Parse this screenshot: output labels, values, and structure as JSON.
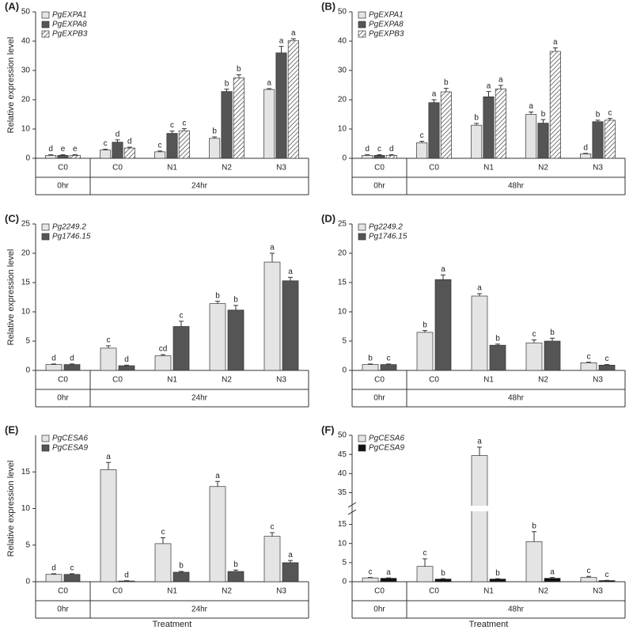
{
  "chart_data": [
    {
      "type": "bar",
      "panel": "(A)",
      "y_label": "Relative expression level",
      "categories": [
        "C0",
        "C0",
        "N1",
        "N2",
        "N3"
      ],
      "groups": [
        {
          "label": "0hr",
          "span": 1
        },
        {
          "label": "24hr",
          "span": 4
        }
      ],
      "ylim": [
        0,
        50
      ],
      "yticks": [
        0,
        10,
        20,
        30,
        40,
        50
      ],
      "series": [
        {
          "name": "PgEXPA1",
          "color": "#e4e4e4",
          "values": [
            1,
            2.8,
            2.2,
            6.8,
            23.5
          ],
          "errors": [
            0.2,
            0.3,
            0.3,
            0.5,
            0.3
          ],
          "letters": [
            "d",
            "c",
            "c",
            "b",
            "a"
          ]
        },
        {
          "name": "PgEXPA8",
          "color": "#555555",
          "values": [
            1,
            5.5,
            8.5,
            22.8,
            36
          ],
          "errors": [
            0.2,
            0.8,
            0.8,
            0.8,
            2.2
          ],
          "letters": [
            "e",
            "d",
            "c",
            "b",
            "a"
          ]
        },
        {
          "name": "PgEXPB3",
          "color": "#ffffff",
          "pattern": "hatch",
          "values": [
            1,
            3.5,
            9.4,
            27.5,
            40.2
          ],
          "errors": [
            0.2,
            0.3,
            0.7,
            1.0,
            0.6
          ],
          "letters": [
            "e",
            "d",
            "c",
            "b",
            "a"
          ]
        }
      ]
    },
    {
      "type": "bar",
      "panel": "(B)",
      "categories": [
        "C0",
        "C0",
        "N1",
        "N2",
        "N3"
      ],
      "groups": [
        {
          "label": "0hr",
          "span": 1
        },
        {
          "label": "48hr",
          "span": 4
        }
      ],
      "ylim": [
        0,
        50
      ],
      "yticks": [
        0,
        10,
        20,
        30,
        40,
        50
      ],
      "series": [
        {
          "name": "PgEXPA1",
          "color": "#e4e4e4",
          "values": [
            1,
            5.3,
            11.3,
            15,
            1.5
          ],
          "errors": [
            0.2,
            0.5,
            0.6,
            0.8,
            0.2
          ],
          "letters": [
            "d",
            "c",
            "b",
            "a",
            "d"
          ]
        },
        {
          "name": "PgEXPA8",
          "color": "#555555",
          "values": [
            1,
            19,
            21,
            12,
            12.5
          ],
          "errors": [
            0.2,
            1.0,
            1.8,
            1.2,
            0.5
          ],
          "letters": [
            "c",
            "a",
            "a",
            "b",
            "b"
          ]
        },
        {
          "name": "PgEXPB3",
          "color": "#ffffff",
          "pattern": "hatch",
          "values": [
            1,
            22.7,
            23.7,
            36.5,
            13
          ],
          "errors": [
            0.2,
            1.2,
            1.2,
            1.2,
            0.6
          ],
          "letters": [
            "d",
            "b",
            "a",
            "a",
            "c"
          ]
        }
      ]
    },
    {
      "type": "bar",
      "panel": "(C)",
      "y_label": "Relative expression level",
      "categories": [
        "C0",
        "C0",
        "N1",
        "N2",
        "N3"
      ],
      "groups": [
        {
          "label": "0hr",
          "span": 1
        },
        {
          "label": "24hr",
          "span": 4
        }
      ],
      "ylim": [
        0,
        25
      ],
      "yticks": [
        0,
        5,
        10,
        15,
        20,
        25
      ],
      "series": [
        {
          "name": "Pg2249.2",
          "color": "#e4e4e4",
          "values": [
            1,
            3.8,
            2.5,
            11.4,
            18.5
          ],
          "errors": [
            0.1,
            0.4,
            0.2,
            0.4,
            1.5
          ],
          "letters": [
            "d",
            "c",
            "cd",
            "b",
            "a"
          ]
        },
        {
          "name": "Pg1746.15",
          "color": "#555555",
          "values": [
            1,
            0.8,
            7.5,
            10.3,
            15.3
          ],
          "errors": [
            0.1,
            0.1,
            0.9,
            0.8,
            0.6
          ],
          "letters": [
            "d",
            "d",
            "c",
            "b",
            "a"
          ]
        }
      ]
    },
    {
      "type": "bar",
      "panel": "(D)",
      "categories": [
        "C0",
        "C0",
        "N1",
        "N2",
        "N3"
      ],
      "groups": [
        {
          "label": "0hr",
          "span": 1
        },
        {
          "label": "48hr",
          "span": 4
        }
      ],
      "ylim": [
        0,
        25
      ],
      "yticks": [
        0,
        5,
        10,
        15,
        20,
        25
      ],
      "series": [
        {
          "name": "Pg2249.2",
          "color": "#e4e4e4",
          "values": [
            1,
            6.5,
            12.7,
            4.7,
            1.3
          ],
          "errors": [
            0.1,
            0.3,
            0.4,
            0.5,
            0.1
          ],
          "letters": [
            "b",
            "b",
            "a",
            "c",
            "c"
          ]
        },
        {
          "name": "Pg1746.15",
          "color": "#555555",
          "values": [
            1,
            15.5,
            4.3,
            5,
            0.9
          ],
          "errors": [
            0.1,
            0.8,
            0.2,
            0.5,
            0.1
          ],
          "letters": [
            "c",
            "a",
            "b",
            "b",
            "c"
          ]
        }
      ]
    },
    {
      "type": "bar",
      "panel": "(E)",
      "y_label": "Relative expression level",
      "x_label": "Treatment",
      "categories": [
        "C0",
        "C0",
        "N1",
        "N2",
        "N3"
      ],
      "groups": [
        {
          "label": "0hr",
          "span": 1
        },
        {
          "label": "24hr",
          "span": 4
        }
      ],
      "ylim": [
        0,
        20
      ],
      "yticks": [
        0,
        5,
        10,
        15
      ],
      "series": [
        {
          "name": "PgCESA6",
          "color": "#e4e4e4",
          "values": [
            1,
            15.3,
            5.2,
            13,
            6.2
          ],
          "errors": [
            0.1,
            1.0,
            0.8,
            0.7,
            0.5
          ],
          "letters": [
            "d",
            "a",
            "c",
            "a",
            "c"
          ]
        },
        {
          "name": "PgCESA9",
          "color": "#555555",
          "values": [
            1,
            0.1,
            1.3,
            1.4,
            2.6
          ],
          "errors": [
            0.1,
            0.05,
            0.1,
            0.2,
            0.3
          ],
          "letters": [
            "c",
            "d",
            "b",
            "b",
            "a"
          ]
        }
      ]
    },
    {
      "type": "bar",
      "panel": "(F)",
      "x_label": "Treatment",
      "categories": [
        "C0",
        "C0",
        "N1",
        "N2",
        "N3"
      ],
      "groups": [
        {
          "label": "0hr",
          "span": 1
        },
        {
          "label": "48hr",
          "span": 4
        }
      ],
      "ylim": [
        0,
        50
      ],
      "ybreak": [
        18,
        32
      ],
      "yticks": [
        0,
        5,
        10,
        15,
        35,
        40,
        45,
        50
      ],
      "series": [
        {
          "name": "PgCESA6",
          "color": "#e4e4e4",
          "values": [
            1,
            4,
            44.7,
            10.5,
            1.1
          ],
          "errors": [
            0.1,
            2.0,
            2.2,
            2.6,
            0.3
          ],
          "letters": [
            "c",
            "c",
            "a",
            "b",
            "c"
          ]
        },
        {
          "name": "PgCESA9",
          "color": "#111111",
          "values": [
            0.9,
            0.7,
            0.7,
            0.9,
            0.3
          ],
          "errors": [
            0.1,
            0.1,
            0.1,
            0.2,
            0.05
          ],
          "letters": [
            "a",
            "b",
            "b",
            "a",
            "c"
          ]
        }
      ]
    }
  ]
}
